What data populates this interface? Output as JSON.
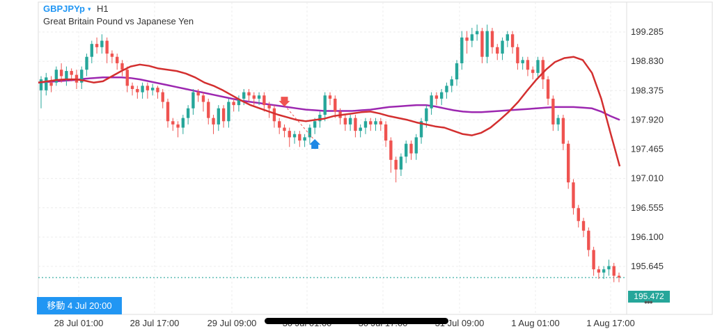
{
  "header": {
    "symbol": "GBPJPYp",
    "caret": "▾",
    "timeframe": "H1",
    "subtitle": "Great Britain Pound vs Japanese Yen"
  },
  "crosshair": {
    "label": "移動 4 Jul 20:00"
  },
  "current_price": {
    "label": "195.472",
    "value": 195.472
  },
  "colors": {
    "bull": "#26a69a",
    "bear": "#ef5350",
    "ma_fast": "#d32f2f",
    "ma_slow": "#9c27b0",
    "grid": "#ececec",
    "crosshair": "#2196f3",
    "axis_text": "#333333"
  },
  "chart_data": {
    "type": "candlestick",
    "ylim": [
      194.9,
      199.75
    ],
    "y_ticks": [
      199.285,
      198.83,
      198.375,
      197.92,
      197.465,
      197.01,
      196.555,
      196.1,
      195.645
    ],
    "y_tick_labels": [
      "199.285",
      "198.830",
      "198.375",
      "197.920",
      "197.465",
      "197.010",
      "196.555",
      "196.100",
      "195.645"
    ],
    "x_tick_labels": [
      "28 Jul 01:00",
      "28 Jul 17:00",
      "29 Jul 09:00",
      "30 Jul 01:00",
      "30 Jul 17:00",
      "31 Jul 09:00",
      "1 Aug 01:00",
      "1 Aug 17:00"
    ],
    "candles": [
      [
        198.38,
        198.55,
        198.15,
        198.6,
        198.1
      ],
      [
        198.38,
        198.58,
        198.35,
        198.65,
        198.3
      ],
      [
        198.5,
        198.45,
        198.4,
        198.6,
        198.35
      ],
      [
        198.5,
        198.7,
        198.48,
        198.75,
        198.45
      ],
      [
        198.7,
        198.6,
        198.55,
        198.8,
        198.5
      ],
      [
        198.55,
        198.68,
        198.5,
        198.75,
        198.45
      ],
      [
        198.68,
        198.62,
        198.58,
        198.72,
        198.52
      ],
      [
        198.62,
        198.5,
        198.45,
        198.7,
        198.4
      ],
      [
        198.5,
        198.7,
        198.45,
        198.75,
        198.4
      ],
      [
        198.7,
        198.9,
        198.65,
        198.95,
        198.6
      ],
      [
        198.9,
        199.1,
        198.85,
        199.15,
        198.8
      ],
      [
        199.1,
        199.05,
        199.0,
        199.2,
        198.95
      ],
      [
        199.05,
        199.15,
        199.0,
        199.25,
        198.95
      ],
      [
        199.15,
        198.95,
        198.85,
        199.2,
        198.8
      ],
      [
        198.95,
        198.9,
        198.85,
        199.0,
        198.8
      ],
      [
        198.9,
        198.8,
        198.75,
        198.95,
        198.7
      ],
      [
        198.8,
        198.7,
        198.65,
        198.85,
        198.6
      ],
      [
        198.7,
        198.45,
        198.4,
        198.75,
        198.35
      ],
      [
        198.45,
        198.4,
        198.35,
        198.5,
        198.3
      ],
      [
        198.4,
        198.35,
        198.3,
        198.45,
        198.25
      ],
      [
        198.35,
        198.45,
        198.3,
        198.5,
        198.25
      ],
      [
        198.45,
        198.38,
        198.3,
        198.5,
        198.25
      ],
      [
        198.38,
        198.42,
        198.35,
        198.48,
        198.3
      ],
      [
        198.42,
        198.35,
        198.3,
        198.45,
        198.25
      ],
      [
        198.35,
        198.2,
        198.15,
        198.4,
        198.1
      ],
      [
        198.2,
        197.9,
        197.85,
        198.25,
        197.8
      ],
      [
        197.9,
        197.85,
        197.8,
        197.95,
        197.75
      ],
      [
        197.85,
        197.8,
        197.75,
        197.9,
        197.65
      ],
      [
        197.8,
        197.95,
        197.75,
        198.0,
        197.7
      ],
      [
        197.95,
        198.1,
        197.9,
        198.15,
        197.85
      ],
      [
        198.1,
        198.35,
        198.05,
        198.4,
        198.0
      ],
      [
        198.35,
        198.3,
        198.25,
        198.4,
        198.2
      ],
      [
        198.3,
        198.2,
        198.1,
        198.35,
        198.05
      ],
      [
        198.2,
        197.95,
        197.9,
        198.25,
        197.85
      ],
      [
        197.95,
        197.85,
        197.8,
        198.0,
        197.7
      ],
      [
        197.85,
        198.1,
        197.8,
        198.15,
        197.75
      ],
      [
        198.1,
        197.9,
        197.85,
        198.15,
        197.8
      ],
      [
        197.9,
        198.2,
        197.85,
        198.25,
        197.8
      ],
      [
        198.2,
        198.15,
        198.1,
        198.25,
        198.05
      ],
      [
        198.15,
        198.25,
        198.1,
        198.3,
        198.05
      ],
      [
        198.25,
        198.35,
        198.2,
        198.4,
        198.15
      ],
      [
        198.35,
        198.3,
        198.25,
        198.4,
        198.2
      ],
      [
        198.3,
        198.25,
        198.2,
        198.35,
        198.15
      ],
      [
        198.25,
        198.3,
        198.2,
        198.35,
        198.15
      ],
      [
        198.3,
        198.15,
        198.1,
        198.35,
        198.05
      ],
      [
        198.15,
        198.1,
        198.0,
        198.2,
        197.95
      ],
      [
        198.1,
        197.9,
        197.85,
        198.15,
        197.8
      ],
      [
        197.9,
        197.8,
        197.75,
        197.95,
        197.7
      ],
      [
        197.8,
        197.75,
        197.7,
        197.85,
        197.65
      ],
      [
        197.75,
        197.65,
        197.55,
        197.8,
        197.5
      ],
      [
        197.65,
        197.7,
        197.6,
        197.75,
        197.55
      ],
      [
        197.7,
        197.6,
        197.55,
        197.75,
        197.5
      ],
      [
        197.6,
        197.65,
        197.55,
        197.7,
        197.5
      ],
      [
        197.65,
        197.8,
        197.6,
        197.85,
        197.55
      ],
      [
        197.8,
        197.9,
        197.75,
        197.95,
        197.7
      ],
      [
        197.9,
        198.0,
        197.85,
        198.05,
        197.8
      ],
      [
        198.0,
        198.3,
        197.95,
        198.35,
        197.9
      ],
      [
        198.3,
        198.25,
        198.2,
        198.35,
        198.15
      ],
      [
        198.25,
        198.05,
        198.0,
        198.3,
        197.95
      ],
      [
        198.05,
        197.95,
        197.9,
        198.1,
        197.85
      ],
      [
        197.95,
        197.85,
        197.8,
        198.0,
        197.75
      ],
      [
        197.85,
        197.95,
        197.8,
        198.0,
        197.75
      ],
      [
        197.95,
        197.75,
        197.7,
        198.0,
        197.65
      ],
      [
        197.75,
        197.8,
        197.7,
        197.85,
        197.65
      ],
      [
        197.8,
        197.9,
        197.75,
        197.95,
        197.7
      ],
      [
        197.9,
        197.85,
        197.8,
        197.95,
        197.75
      ],
      [
        197.85,
        197.9,
        197.8,
        197.95,
        197.75
      ],
      [
        197.9,
        197.85,
        197.8,
        197.95,
        197.75
      ],
      [
        197.85,
        197.6,
        197.55,
        197.9,
        197.5
      ],
      [
        197.6,
        197.3,
        197.2,
        197.65,
        197.1
      ],
      [
        197.3,
        197.15,
        197.05,
        197.35,
        196.95
      ],
      [
        197.15,
        197.35,
        197.1,
        197.4,
        197.05
      ],
      [
        197.35,
        197.55,
        197.3,
        197.6,
        197.25
      ],
      [
        197.55,
        197.4,
        197.35,
        197.6,
        197.3
      ],
      [
        197.4,
        197.65,
        197.35,
        197.7,
        197.3
      ],
      [
        197.65,
        197.9,
        197.6,
        197.95,
        197.55
      ],
      [
        197.9,
        198.1,
        197.85,
        198.15,
        197.8
      ],
      [
        198.1,
        198.3,
        198.05,
        198.35,
        198.0
      ],
      [
        198.3,
        198.25,
        198.2,
        198.35,
        198.15
      ],
      [
        198.25,
        198.35,
        198.2,
        198.4,
        198.15
      ],
      [
        198.35,
        198.45,
        198.3,
        198.5,
        198.25
      ],
      [
        198.45,
        198.55,
        198.4,
        198.6,
        198.35
      ],
      [
        198.55,
        198.8,
        198.5,
        198.85,
        198.45
      ],
      [
        198.8,
        199.2,
        198.75,
        199.3,
        198.7
      ],
      [
        199.2,
        199.15,
        199.05,
        199.3,
        198.95
      ],
      [
        199.15,
        199.25,
        199.1,
        199.35,
        199.05
      ],
      [
        199.25,
        199.3,
        199.2,
        199.4,
        199.15
      ],
      [
        199.3,
        198.9,
        198.85,
        199.35,
        198.8
      ],
      [
        198.9,
        199.3,
        198.85,
        199.4,
        198.8
      ],
      [
        199.3,
        199.05,
        199.0,
        199.35,
        198.95
      ],
      [
        199.05,
        198.95,
        198.9,
        199.1,
        198.85
      ],
      [
        198.95,
        199.15,
        198.9,
        199.2,
        198.85
      ],
      [
        199.15,
        199.25,
        199.1,
        199.3,
        199.05
      ],
      [
        199.25,
        199.05,
        199.0,
        199.3,
        198.95
      ],
      [
        199.05,
        198.8,
        198.75,
        199.1,
        198.7
      ],
      [
        198.8,
        198.85,
        198.75,
        198.9,
        198.7
      ],
      [
        198.85,
        198.7,
        198.65,
        198.9,
        198.6
      ],
      [
        198.7,
        198.65,
        198.6,
        198.75,
        198.55
      ],
      [
        198.65,
        198.85,
        198.6,
        198.9,
        198.55
      ],
      [
        198.85,
        198.55,
        198.45,
        198.9,
        198.4
      ],
      [
        198.55,
        198.25,
        198.2,
        198.6,
        198.15
      ],
      [
        198.25,
        197.85,
        197.8,
        198.3,
        197.75
      ],
      [
        197.85,
        197.95,
        197.8,
        198.0,
        197.75
      ],
      [
        197.95,
        197.55,
        197.5,
        198.0,
        197.45
      ],
      [
        197.55,
        196.95,
        196.9,
        197.6,
        196.85
      ],
      [
        196.95,
        196.55,
        196.5,
        197.0,
        196.45
      ],
      [
        196.55,
        196.35,
        196.3,
        196.6,
        196.25
      ],
      [
        196.35,
        196.2,
        196.15,
        196.4,
        196.1
      ],
      [
        196.2,
        195.9,
        195.85,
        196.25,
        195.8
      ],
      [
        195.9,
        195.6,
        195.55,
        195.95,
        195.5
      ],
      [
        195.6,
        195.55,
        195.5,
        195.65,
        195.45
      ],
      [
        195.55,
        195.6,
        195.5,
        195.65,
        195.45
      ],
      [
        195.6,
        195.65,
        195.55,
        195.75,
        195.5
      ],
      [
        195.65,
        195.5,
        195.45,
        195.7,
        195.4
      ],
      [
        195.5,
        195.472,
        195.45,
        195.55,
        195.4
      ]
    ],
    "candle_fields": [
      "open",
      "close",
      "low",
      "high",
      "wick_low"
    ],
    "ma_fast": [
      198.5,
      198.52,
      198.54,
      198.55,
      198.55,
      198.53,
      198.5,
      198.52,
      198.6,
      198.68,
      198.75,
      198.78,
      198.76,
      198.72,
      198.7,
      198.68,
      198.64,
      198.58,
      198.5,
      198.45,
      198.38,
      198.3,
      198.22,
      198.15,
      198.1,
      198.05,
      198.0,
      197.96,
      197.92,
      197.9,
      197.92,
      197.94,
      197.98,
      198.0,
      198.02,
      198.04,
      198.05,
      198.02,
      197.98,
      197.95,
      197.92,
      197.88,
      197.85,
      197.82,
      197.8,
      197.75,
      197.7,
      197.68,
      197.72,
      197.8,
      197.92,
      198.05,
      198.2,
      198.38,
      198.55,
      198.7,
      198.82,
      198.88,
      198.9,
      198.85,
      198.65,
      198.25,
      197.72,
      197.2
    ],
    "ma_slow": [
      198.5,
      198.51,
      198.52,
      198.53,
      198.54,
      198.56,
      198.57,
      198.58,
      198.58,
      198.58,
      198.57,
      198.55,
      198.52,
      198.49,
      198.46,
      198.43,
      198.4,
      198.37,
      198.34,
      198.31,
      198.28,
      198.25,
      198.22,
      198.2,
      198.18,
      198.16,
      198.14,
      198.12,
      198.1,
      198.08,
      198.07,
      198.06,
      198.06,
      198.06,
      198.06,
      198.07,
      198.08,
      198.1,
      198.12,
      198.13,
      198.14,
      198.15,
      198.15,
      198.13,
      198.1,
      198.07,
      198.05,
      198.04,
      198.04,
      198.05,
      198.06,
      198.07,
      198.08,
      198.09,
      198.1,
      198.11,
      198.12,
      198.12,
      198.12,
      198.11,
      198.1,
      198.05,
      197.98,
      197.92
    ],
    "signals": [
      {
        "type": "sell",
        "index": 48,
        "price": 198.15
      },
      {
        "type": "buy",
        "index": 54,
        "price": 197.6
      }
    ]
  }
}
